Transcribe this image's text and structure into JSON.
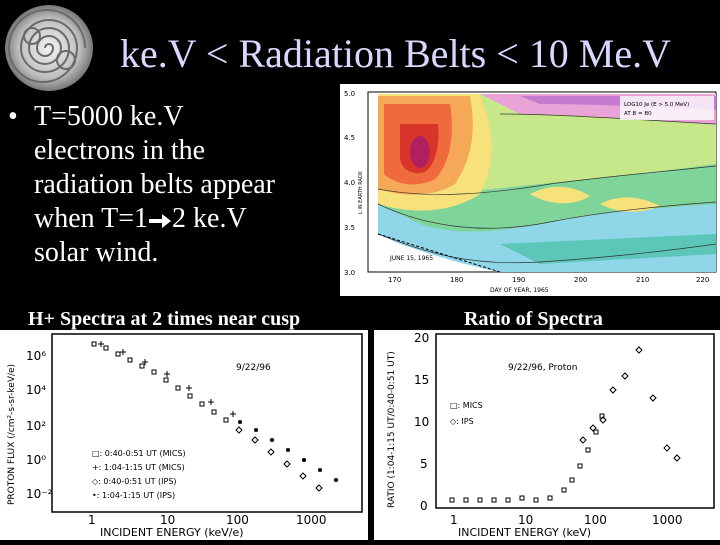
{
  "title": "ke.V < Radiation Belts < 10 Me.V",
  "bullet": {
    "dot": "•",
    "line1": "T=5000 ke.V",
    "line2": "electrons in the",
    "line3": "radiation belts appear",
    "line4_a": "when T=1",
    "line4_b": "2 ke.V",
    "line5": "solar wind."
  },
  "captions": {
    "left": "H+ Spectra at 2 times near cusp",
    "right": "Ratio of Spectra"
  },
  "top_figure": {
    "y_ticks": [
      "5.0",
      "4.5",
      "4.0",
      "3.5",
      "3.0"
    ],
    "x_ticks": [
      "170",
      "180",
      "190",
      "200",
      "210",
      "220"
    ],
    "y_label": "L IN EARTH RADII",
    "x_label": "DAY OF YEAR, 1965",
    "legend_line1": "LOG10 Je (E > 5.0 MeV)",
    "legend_line2": "AT B = B0",
    "date_note": "JUNE 15, 1965"
  },
  "left_plot": {
    "y_label": "PROTON FLUX (/cm²-s-sr-keV/e)",
    "x_label": "INCIDENT ENERGY (keV/e)",
    "date": "9/22/96",
    "y_ticks": [
      "10⁶",
      "10⁴",
      "10²",
      "10⁰",
      "10⁻²"
    ],
    "x_ticks": [
      "1",
      "10",
      "100",
      "1000"
    ],
    "legend": [
      "□: 0:40-0:51 UT (MICS)",
      "+: 1:04-1:15 UT (MICS)",
      "◇: 0:40-0:51 UT (IPS)",
      "•: 1:04-1:15 UT (IPS)"
    ]
  },
  "right_plot": {
    "y_label": "RATIO (1:04-1:15 UT/0:40-0:51 UT)",
    "x_label": "INCIDENT ENERGY (keV)",
    "date": "9/22/96, Proton",
    "y_ticks": [
      "20",
      "15",
      "10",
      "5",
      "0"
    ],
    "x_ticks": [
      "1",
      "10",
      "100",
      "1000"
    ],
    "legend": [
      "□: MICS",
      "◇: IPS"
    ]
  }
}
